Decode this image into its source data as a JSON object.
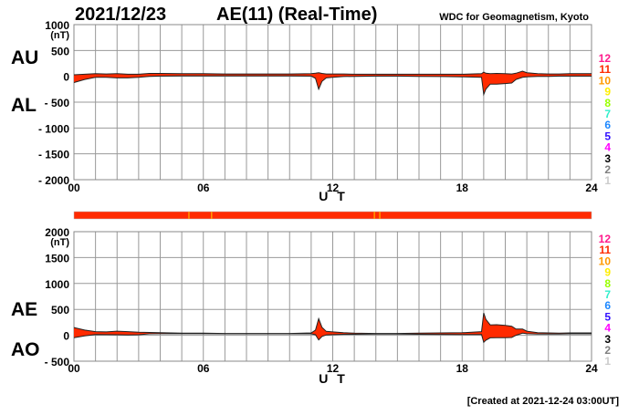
{
  "header": {
    "date": "2021/12/23",
    "title": "AE(11) (Real-Time)",
    "source": "WDC for Geomagnetism, Kyoto",
    "created": "[Created at 2021-12-24 03:00UT]"
  },
  "legend": {
    "labels": [
      "12",
      "11",
      "10",
      "9",
      "8",
      "7",
      "6",
      "5",
      "4",
      "3",
      "2",
      "1"
    ],
    "colors": [
      "#ff1a8c",
      "#ff2a00",
      "#ff9900",
      "#ffee00",
      "#99ff00",
      "#33eecc",
      "#1e88ff",
      "#3311ff",
      "#ff00ff",
      "#000000",
      "#808080",
      "#cccccc"
    ]
  },
  "chart_data": [
    {
      "type": "area",
      "name": "AU/AL",
      "labels_left": [
        "AU",
        "AL"
      ],
      "unit": "(nT)",
      "xlabel": "U T",
      "xticks": [
        "00",
        "06",
        "12",
        "18",
        "24"
      ],
      "xlim": [
        0,
        24
      ],
      "yticks": [
        "1000",
        "500",
        "0",
        "- 500",
        "- 1000",
        "- 1500",
        "- 2000"
      ],
      "ylim": [
        -2000,
        1000
      ],
      "grid": true,
      "x": [
        0,
        0.5,
        1,
        1.5,
        2,
        2.5,
        3,
        3.5,
        4,
        5,
        6,
        7,
        8,
        9,
        10,
        11,
        11.2,
        11.35,
        11.5,
        11.7,
        12,
        12.5,
        13,
        14,
        15,
        16,
        17,
        18,
        18.9,
        19.0,
        19.1,
        19.3,
        19.6,
        20,
        20.3,
        20.5,
        20.8,
        21,
        21.5,
        22,
        22.5,
        23,
        24
      ],
      "series": [
        {
          "name": "AU",
          "values": [
            30,
            40,
            50,
            45,
            50,
            40,
            40,
            55,
            55,
            50,
            50,
            45,
            45,
            45,
            45,
            50,
            60,
            70,
            55,
            45,
            45,
            45,
            40,
            40,
            40,
            40,
            40,
            40,
            50,
            80,
            60,
            50,
            55,
            50,
            45,
            60,
            100,
            70,
            50,
            45,
            45,
            50,
            50
          ]
        },
        {
          "name": "AL",
          "values": [
            -120,
            -60,
            -20,
            -20,
            -30,
            -30,
            -20,
            0,
            5,
            10,
            10,
            10,
            10,
            10,
            10,
            5,
            -40,
            -250,
            -100,
            -30,
            -20,
            -5,
            0,
            5,
            5,
            0,
            -5,
            -10,
            -20,
            -350,
            -250,
            -150,
            -150,
            -140,
            -130,
            -60,
            -20,
            -10,
            0,
            0,
            5,
            5,
            5
          ]
        }
      ]
    },
    {
      "type": "area",
      "name": "AE/AO",
      "labels_left": [
        "AE",
        "AO"
      ],
      "unit": "(nT)",
      "xlabel": "U T",
      "xticks": [
        "00",
        "06",
        "12",
        "18",
        "24"
      ],
      "xlim": [
        0,
        24
      ],
      "yticks": [
        "2000",
        "1500",
        "1000",
        "500",
        "0",
        "- 500"
      ],
      "ylim": [
        -500,
        2000
      ],
      "grid": true,
      "x": [
        0,
        0.5,
        1,
        1.5,
        2,
        2.5,
        3,
        3.5,
        4,
        5,
        6,
        7,
        8,
        9,
        10,
        11,
        11.2,
        11.35,
        11.5,
        11.7,
        12,
        12.5,
        13,
        14,
        15,
        16,
        17,
        18,
        18.9,
        19.0,
        19.1,
        19.3,
        19.6,
        20,
        20.3,
        20.5,
        20.8,
        21,
        21.5,
        22,
        22.5,
        23,
        24
      ],
      "series": [
        {
          "name": "AE",
          "values": [
            150,
            100,
            70,
            65,
            80,
            70,
            60,
            55,
            50,
            40,
            40,
            35,
            35,
            35,
            35,
            45,
            100,
            320,
            155,
            75,
            65,
            50,
            40,
            35,
            35,
            40,
            45,
            50,
            70,
            430,
            310,
            200,
            205,
            190,
            175,
            120,
            120,
            80,
            50,
            45,
            40,
            45,
            45
          ]
        },
        {
          "name": "AO",
          "values": [
            -45,
            -10,
            15,
            12.5,
            10,
            5,
            10,
            27.5,
            30,
            30,
            30,
            27.5,
            27.5,
            27.5,
            27.5,
            27.5,
            10,
            -90,
            -22.5,
            7.5,
            12.5,
            20,
            20,
            22.5,
            22.5,
            20,
            17.5,
            15,
            15,
            -135,
            -95,
            -50,
            -47.5,
            -45,
            -42.5,
            0,
            40,
            30,
            25,
            22.5,
            25,
            27.5,
            27.5
          ]
        }
      ]
    }
  ],
  "station_bar": {
    "default_count": 11,
    "exceptions": [
      {
        "hour": 5.3,
        "count": 10
      },
      {
        "hour": 6.35,
        "count": 10
      },
      {
        "hour": 13.9,
        "count": 10
      },
      {
        "hour": 14.15,
        "count": 10
      }
    ]
  }
}
